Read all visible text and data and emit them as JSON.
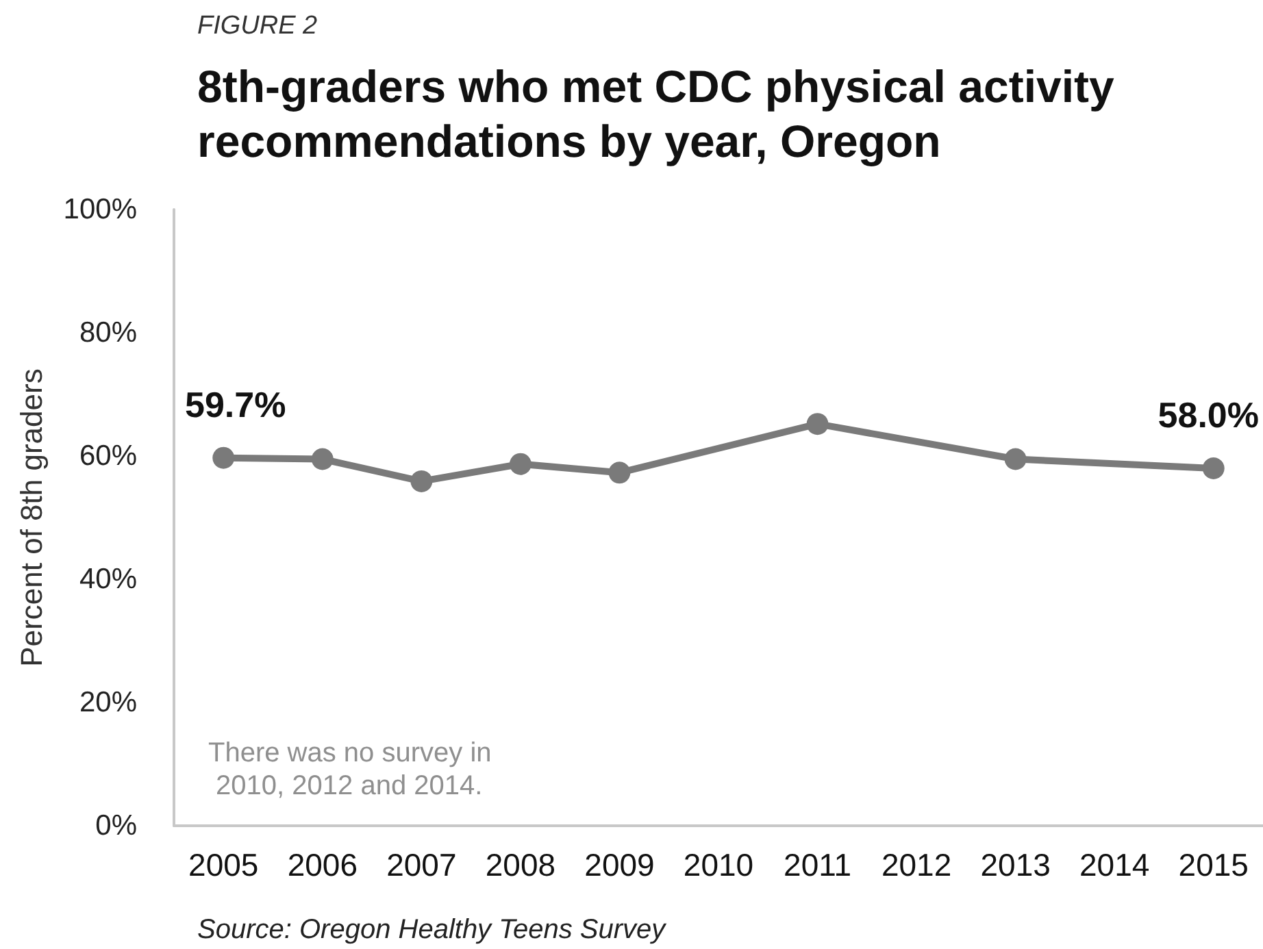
{
  "chart_data": {
    "type": "line",
    "title": "8th-graders who met CDC physical activity recommendations by year, Oregon",
    "ylabel": "Percent of 8th graders",
    "annotations": [
      "FIGURE 2",
      "There was no survey in 2010, 2012 and 2014.",
      "Source: Oregon Healthy Teens Survey"
    ],
    "categories": [
      "2005",
      "2006",
      "2007",
      "2008",
      "2009",
      "2010",
      "2011",
      "2012",
      "2013",
      "2014",
      "2015"
    ],
    "series": [
      {
        "color": "#7a7a7a",
        "values": [
          59.7,
          59.5,
          55.9,
          58.7,
          57.3,
          null,
          65.2,
          null,
          59.5,
          null,
          58.0
        ],
        "value_labels": [
          "59.7%",
          null,
          null,
          null,
          null,
          null,
          null,
          null,
          null,
          null,
          "58.0%"
        ]
      }
    ],
    "ylim": [
      0,
      100
    ],
    "yticks": [
      {
        "value": 0,
        "label": "0%"
      },
      {
        "value": 20,
        "label": "20%"
      },
      {
        "value": 40,
        "label": "40%"
      },
      {
        "value": 60,
        "label": "60%"
      },
      {
        "value": 80,
        "label": "80%"
      },
      {
        "value": 100,
        "label": "100%"
      }
    ],
    "grid": false,
    "marker": "circle",
    "line_style": "solid"
  }
}
